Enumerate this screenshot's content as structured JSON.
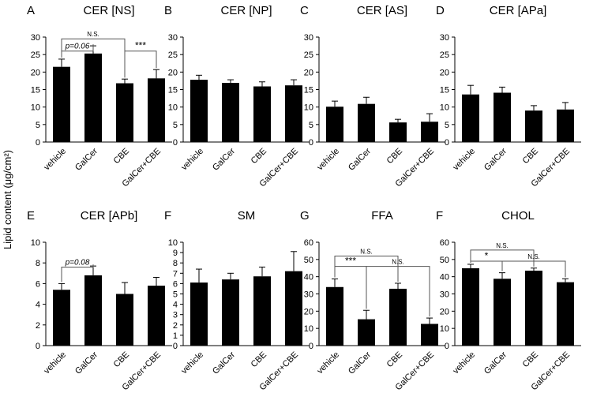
{
  "figure": {
    "ylabel": "Lipid content (μg/cm²)"
  },
  "chart_data": [
    {
      "panel": "A",
      "title": "CER [NS]",
      "type": "bar",
      "categories": [
        "vehicle",
        "GalCer",
        "CBE",
        "GalCer+CBE"
      ],
      "values": [
        21.5,
        25.3,
        16.8,
        18.2
      ],
      "errors": [
        2.2,
        2.2,
        1.2,
        2.5
      ],
      "ylim": [
        0,
        30
      ],
      "yticks": [
        0,
        5,
        10,
        15,
        20,
        25,
        30
      ],
      "annotations": [
        {
          "from": 0,
          "to": 1,
          "level": 26.0,
          "label": "p=0.06"
        },
        {
          "from": 0,
          "to": 2,
          "level": 29.5,
          "label": "N.S."
        },
        {
          "from": 2,
          "to": 3,
          "level": 26.0,
          "label": "***"
        }
      ]
    },
    {
      "panel": "B",
      "title": "CER [NP]",
      "type": "bar",
      "categories": [
        "vehicle",
        "GalCer",
        "CBE",
        "GalCer+CBE"
      ],
      "values": [
        17.8,
        16.9,
        15.9,
        16.2
      ],
      "errors": [
        1.3,
        0.9,
        1.3,
        1.6
      ],
      "ylim": [
        0,
        30
      ],
      "yticks": [
        0,
        5,
        10,
        15,
        20,
        25,
        30
      ],
      "annotations": []
    },
    {
      "panel": "C",
      "title": "CER [AS]",
      "type": "bar",
      "categories": [
        "vehicle",
        "GalCer",
        "CBE",
        "GalCer+CBE"
      ],
      "values": [
        10.1,
        10.9,
        5.6,
        5.8
      ],
      "errors": [
        1.6,
        1.9,
        0.9,
        2.3
      ],
      "ylim": [
        0,
        30
      ],
      "yticks": [
        0,
        5,
        10,
        15,
        20,
        25,
        30
      ],
      "annotations": []
    },
    {
      "panel": "D",
      "title": "CER [APa]",
      "type": "bar",
      "categories": [
        "vehicle",
        "GalCer",
        "CBE",
        "GalCer+CBE"
      ],
      "values": [
        13.6,
        14.1,
        9.0,
        9.3
      ],
      "errors": [
        2.6,
        1.6,
        1.4,
        2.0
      ],
      "ylim": [
        0,
        30
      ],
      "yticks": [
        0,
        5,
        10,
        15,
        20,
        25,
        30
      ],
      "annotations": []
    },
    {
      "panel": "E",
      "title": "CER [APb]",
      "type": "bar",
      "categories": [
        "vehicle",
        "GalCer",
        "CBE",
        "GalCer+CBE"
      ],
      "values": [
        5.4,
        6.8,
        5.0,
        5.8
      ],
      "errors": [
        0.6,
        0.9,
        1.1,
        0.8
      ],
      "ylim": [
        0,
        10
      ],
      "yticks": [
        0,
        2,
        4,
        6,
        8,
        10
      ],
      "annotations": [
        {
          "from": 0,
          "to": 1,
          "level": 7.6,
          "label": "p=0.08"
        }
      ]
    },
    {
      "panel": "F",
      "title": "SM",
      "type": "bar",
      "categories": [
        "vehicle",
        "GalCer",
        "CBE",
        "GalCer+CBE"
      ],
      "values": [
        6.1,
        6.4,
        6.7,
        7.2
      ],
      "errors": [
        1.3,
        0.6,
        0.9,
        1.9
      ],
      "ylim": [
        0,
        10
      ],
      "yticks": [
        0,
        1,
        2,
        3,
        4,
        5,
        6,
        7,
        8,
        9,
        10
      ],
      "annotations": []
    },
    {
      "panel": "G",
      "title": "FFA",
      "type": "bar",
      "categories": [
        "vehicle",
        "GalCer",
        "CBE",
        "GalCer+CBE"
      ],
      "values": [
        34.0,
        15.3,
        33.0,
        12.6
      ],
      "errors": [
        4.7,
        5.2,
        3.2,
        3.4
      ],
      "ylim": [
        0,
        60
      ],
      "yticks": [
        0,
        10,
        20,
        30,
        40,
        50,
        60
      ],
      "annotations": [
        {
          "from": 0,
          "to": 1,
          "level": 46.0,
          "label": "***"
        },
        {
          "from": 0,
          "to": 2,
          "level": 52.0,
          "label": "N.S."
        },
        {
          "from": 1,
          "to": 3,
          "level": 46.0,
          "label": "N.S."
        }
      ]
    },
    {
      "panel": "F",
      "title": "CHOL",
      "type": "bar",
      "categories": [
        "vehicle",
        "GalCer",
        "CBE",
        "GalCer+CBE"
      ],
      "values": [
        44.9,
        38.8,
        43.5,
        36.8
      ],
      "errors": [
        2.3,
        3.5,
        1.5,
        2.0
      ],
      "ylim": [
        0,
        60
      ],
      "yticks": [
        0,
        10,
        20,
        30,
        40,
        50,
        60
      ],
      "annotations": [
        {
          "from": 0,
          "to": 1,
          "level": 49.0,
          "label": "*"
        },
        {
          "from": 0,
          "to": 2,
          "level": 55.5,
          "label": "N.S."
        },
        {
          "from": 1,
          "to": 3,
          "level": 49.0,
          "label": "N.S."
        }
      ]
    }
  ]
}
